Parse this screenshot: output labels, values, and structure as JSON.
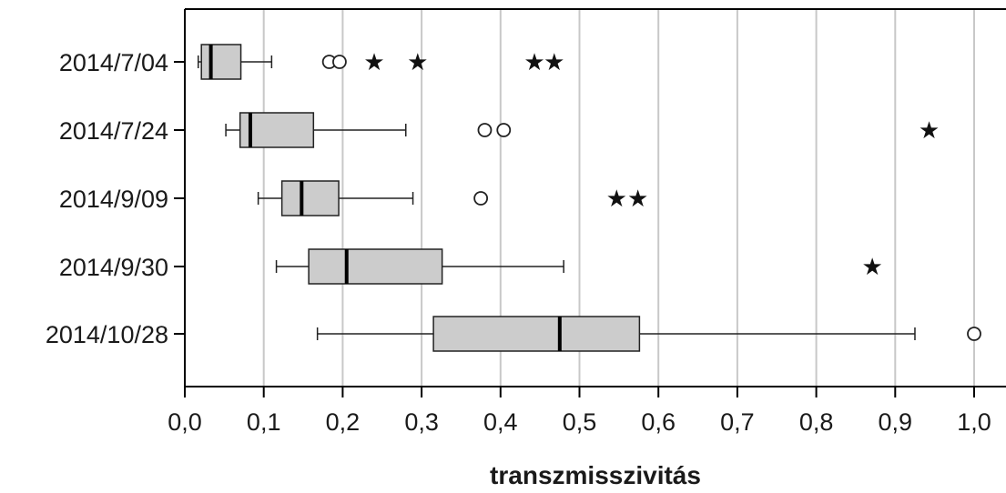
{
  "chart_data": {
    "type": "boxplot",
    "orientation": "horizontal",
    "xlabel": "transzmisszivitás",
    "ylabel": "",
    "xlim": [
      0,
      1.05
    ],
    "x_ticks": [
      0.0,
      0.1,
      0.2,
      0.3,
      0.4,
      0.5,
      0.6,
      0.7,
      0.8,
      0.9,
      1.0
    ],
    "x_tick_labels": [
      "0,0",
      "0,1",
      "0,2",
      "0,3",
      "0,4",
      "0,5",
      "0,6",
      "0,7",
      "0,8",
      "0,9",
      "1,0"
    ],
    "grid": "vertical",
    "categories": [
      "2014/7/04",
      "2014/7/24",
      "2014/9/09",
      "2014/9/30",
      "2014/10/28"
    ],
    "boxes": [
      {
        "category": "2014/7/04",
        "whisker_low": 0.017,
        "q1": 0.021,
        "median": 0.033,
        "q3": 0.071,
        "whisker_high": 0.11,
        "outliers": [
          0.183,
          0.196
        ],
        "extremes": [
          0.24,
          0.295,
          0.443,
          0.468
        ]
      },
      {
        "category": "2014/7/24",
        "whisker_low": 0.052,
        "q1": 0.07,
        "median": 0.083,
        "q3": 0.163,
        "whisker_high": 0.28,
        "outliers": [
          0.38,
          0.404
        ],
        "extremes": [
          0.943
        ]
      },
      {
        "category": "2014/9/09",
        "whisker_low": 0.093,
        "q1": 0.123,
        "median": 0.148,
        "q3": 0.195,
        "whisker_high": 0.289,
        "outliers": [
          0.375
        ],
        "extremes": [
          0.547,
          0.574
        ]
      },
      {
        "category": "2014/9/30",
        "whisker_low": 0.116,
        "q1": 0.157,
        "median": 0.205,
        "q3": 0.326,
        "whisker_high": 0.48,
        "outliers": [],
        "extremes": [
          0.871
        ]
      },
      {
        "category": "2014/10/28",
        "whisker_low": 0.168,
        "q1": 0.315,
        "median": 0.475,
        "q3": 0.576,
        "whisker_high": 0.925,
        "outliers": [
          1.0
        ],
        "extremes": []
      }
    ]
  }
}
